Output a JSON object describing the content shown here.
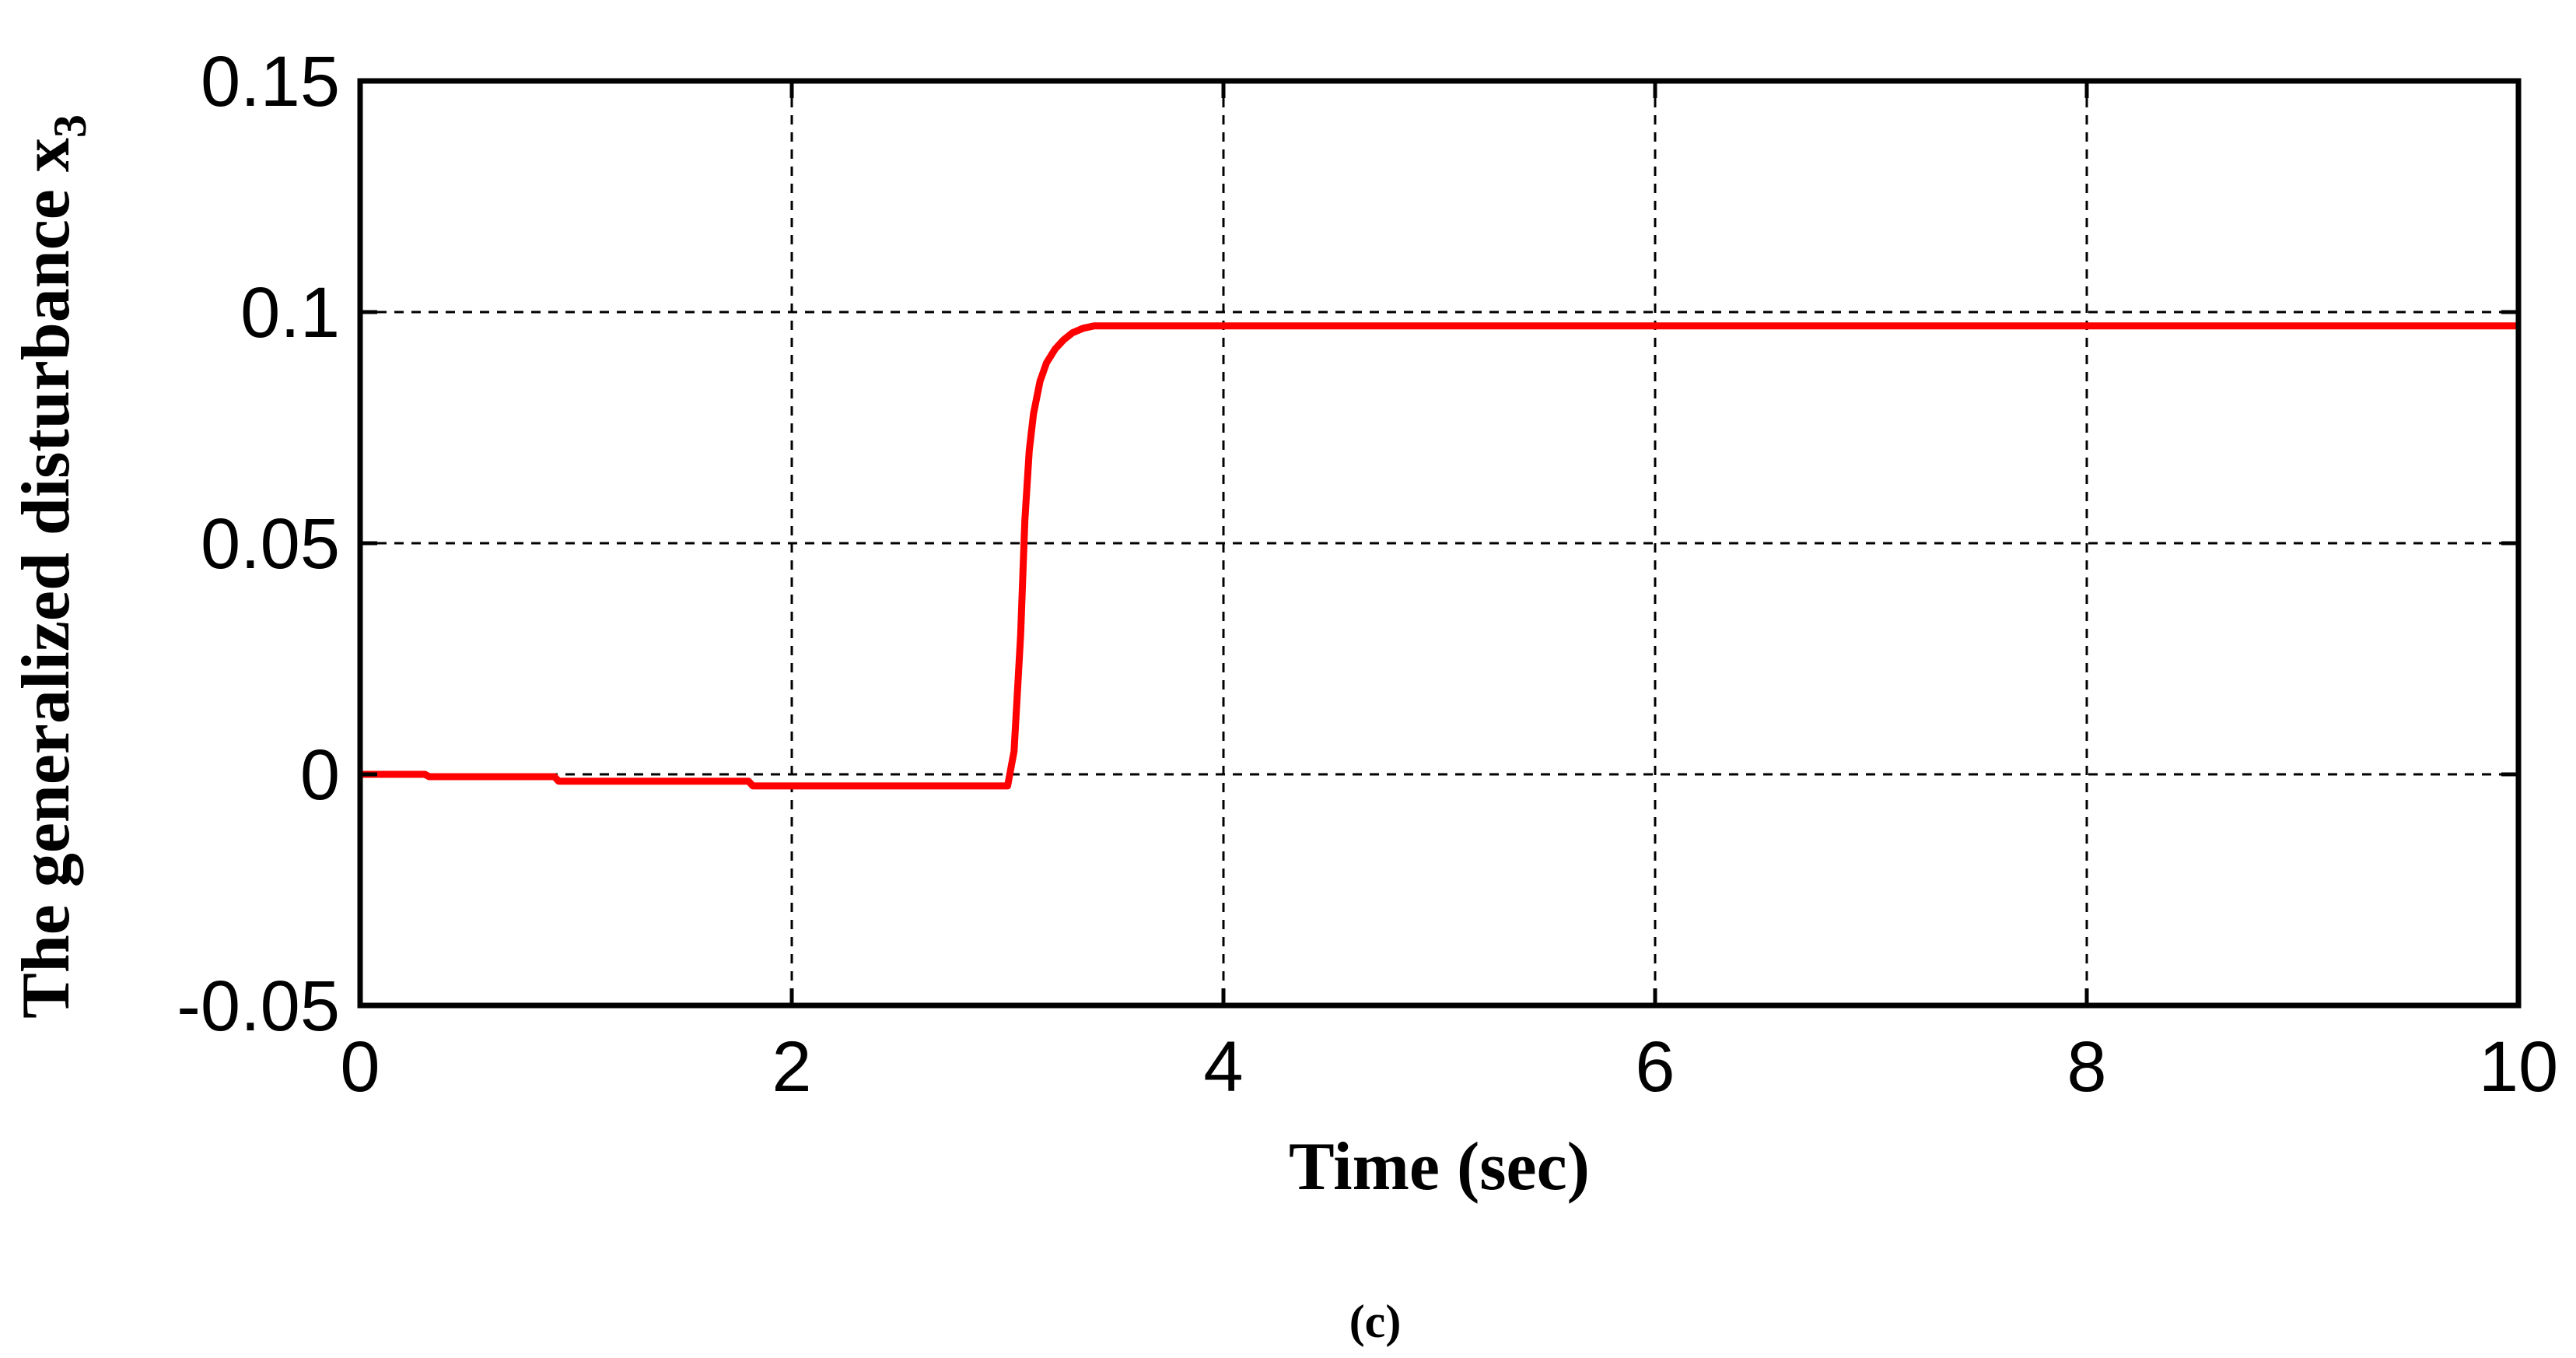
{
  "chart_data": {
    "type": "line",
    "xlabel": "Time (sec)",
    "ylabel_main": "The generalized disturbance x",
    "ylabel_subscript": "3",
    "caption": "(c)",
    "xlim": [
      0,
      10
    ],
    "ylim": [
      -0.05,
      0.15
    ],
    "x_ticks": [
      0,
      2,
      4,
      6,
      8,
      10
    ],
    "x_tick_labels": [
      "0",
      "2",
      "4",
      "6",
      "8",
      "10"
    ],
    "y_ticks": [
      -0.05,
      0,
      0.05,
      0.1,
      0.15
    ],
    "y_tick_labels": [
      "-0.05",
      "0",
      "0.05",
      "0.1",
      "0.15"
    ],
    "grid": true,
    "series": [
      {
        "color": "#ff0000",
        "x": [
          0,
          0.3,
          0.32,
          0.9,
          0.92,
          1.8,
          1.82,
          2.6,
          3.0,
          3.03,
          3.06,
          3.08,
          3.1,
          3.12,
          3.15,
          3.18,
          3.22,
          3.26,
          3.3,
          3.35,
          3.4,
          3.5,
          4.0,
          5.0,
          6.0,
          7.0,
          8.0,
          9.0,
          10.0
        ],
        "y": [
          0.0,
          0.0,
          -0.0005,
          -0.0005,
          -0.0015,
          -0.0015,
          -0.0025,
          -0.0025,
          -0.0025,
          0.005,
          0.03,
          0.055,
          0.07,
          0.078,
          0.085,
          0.089,
          0.092,
          0.094,
          0.0955,
          0.0965,
          0.097,
          0.097,
          0.097,
          0.097,
          0.097,
          0.097,
          0.097,
          0.097,
          0.097
        ]
      }
    ]
  }
}
